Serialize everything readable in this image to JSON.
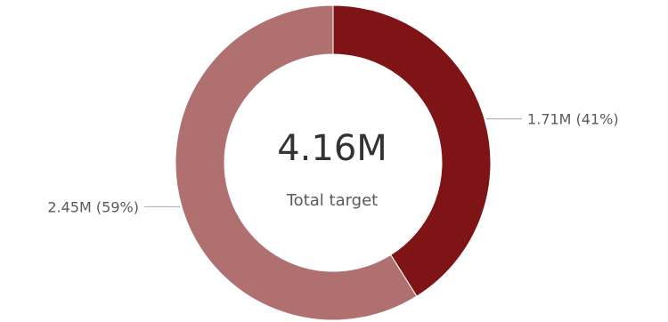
{
  "chart_data": {
    "type": "pie",
    "variant": "donut",
    "center": {
      "value": "4.16M",
      "caption": "Total target"
    },
    "slices": [
      {
        "value": 1.71,
        "percent": 41,
        "label": "1.71M (41%)",
        "color": "#7f1416"
      },
      {
        "value": 2.45,
        "percent": 59,
        "label": "2.45M (59%)",
        "color": "#b07070"
      }
    ],
    "start_angle_deg": 0,
    "direction": "clockwise",
    "legend": "none"
  }
}
